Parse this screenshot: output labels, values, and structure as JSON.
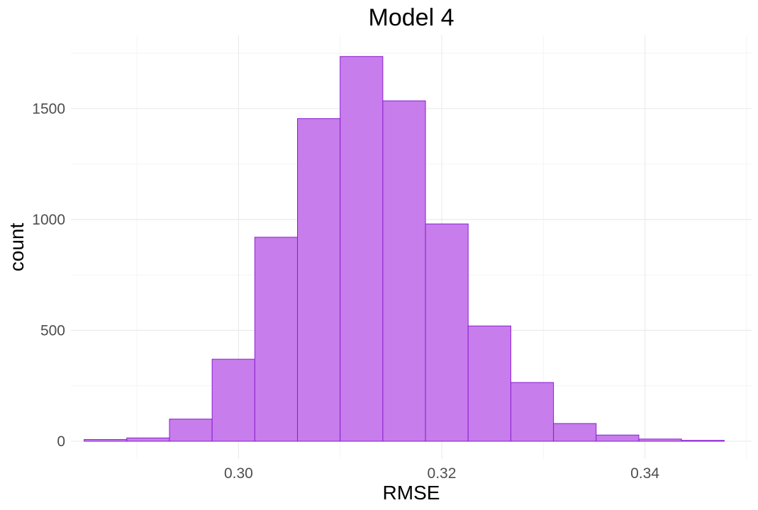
{
  "chart_data": {
    "type": "bar",
    "subtype": "histogram",
    "title": "Model 4",
    "xlabel": "RMSE",
    "ylabel": "count",
    "xlim": [
      0.2835,
      0.3505
    ],
    "ylim": [
      -80,
      1830
    ],
    "x_ticks": [
      0.3,
      0.32,
      0.34
    ],
    "x_tick_labels": [
      "0.30",
      "0.32",
      "0.34"
    ],
    "y_ticks": [
      0,
      500,
      1000,
      1500
    ],
    "y_tick_labels": [
      "0",
      "500",
      "1000",
      "1500"
    ],
    "grid": true,
    "bins": [
      {
        "x0": 0.2848,
        "x1": 0.289,
        "count": 8
      },
      {
        "x0": 0.289,
        "x1": 0.2932,
        "count": 15
      },
      {
        "x0": 0.2932,
        "x1": 0.2974,
        "count": 100
      },
      {
        "x0": 0.2974,
        "x1": 0.3016,
        "count": 370
      },
      {
        "x0": 0.3016,
        "x1": 0.3058,
        "count": 920
      },
      {
        "x0": 0.3058,
        "x1": 0.31,
        "count": 1455
      },
      {
        "x0": 0.31,
        "x1": 0.3142,
        "count": 1735
      },
      {
        "x0": 0.3142,
        "x1": 0.3184,
        "count": 1535
      },
      {
        "x0": 0.3184,
        "x1": 0.3226,
        "count": 980
      },
      {
        "x0": 0.3226,
        "x1": 0.3268,
        "count": 520
      },
      {
        "x0": 0.3268,
        "x1": 0.331,
        "count": 265
      },
      {
        "x0": 0.331,
        "x1": 0.3352,
        "count": 80
      },
      {
        "x0": 0.3352,
        "x1": 0.3394,
        "count": 28
      },
      {
        "x0": 0.3394,
        "x1": 0.3436,
        "count": 10
      },
      {
        "x0": 0.3436,
        "x1": 0.3478,
        "count": 4
      }
    ],
    "colors": {
      "fill": "#c77deb",
      "stroke": "#8b1fd1"
    }
  }
}
